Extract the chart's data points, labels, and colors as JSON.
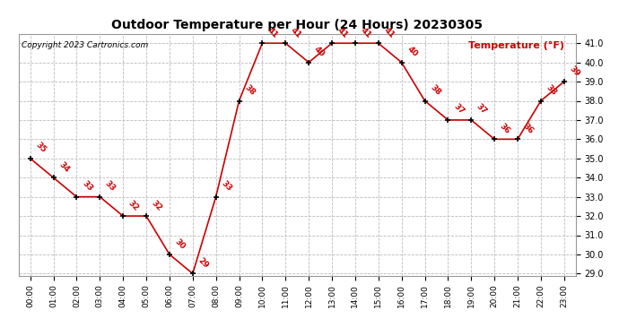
{
  "title": "Outdoor Temperature per Hour (24 Hours) 20230305",
  "copyright": "Copyright 2023 Cartronics.com",
  "ylabel": "Temperature (°F)",
  "hours": [
    "00:00",
    "01:00",
    "02:00",
    "03:00",
    "04:00",
    "05:00",
    "06:00",
    "07:00",
    "08:00",
    "09:00",
    "10:00",
    "11:00",
    "12:00",
    "13:00",
    "14:00",
    "15:00",
    "16:00",
    "17:00",
    "18:00",
    "19:00",
    "20:00",
    "21:00",
    "22:00",
    "23:00"
  ],
  "temps": [
    35,
    34,
    33,
    33,
    32,
    32,
    30,
    29,
    33,
    38,
    41,
    41,
    40,
    41,
    41,
    41,
    40,
    38,
    37,
    37,
    36,
    36,
    38,
    39
  ],
  "ylim_min": 29.0,
  "ylim_max": 41.0,
  "line_color": "#cc0000",
  "marker_color": "black",
  "label_color": "#cc0000",
  "title_color": "black",
  "copyright_color": "black",
  "ylabel_color": "#cc0000",
  "ytick_color": "black",
  "background_color": "white",
  "grid_color": "#bbbbbb"
}
